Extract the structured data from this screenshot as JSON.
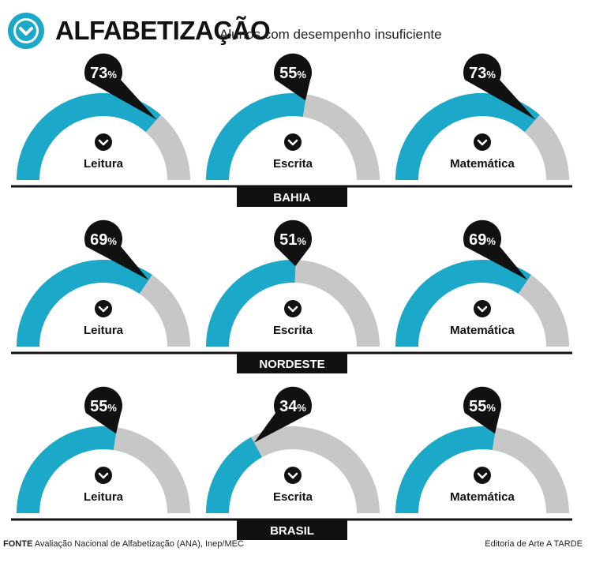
{
  "header": {
    "title": "ALFABETIZAÇÃO",
    "subtitle": "Alunos com desempenho insuficiente",
    "icon": "chevron-down-circle-icon"
  },
  "colors": {
    "fill": "#1ba8c9",
    "track": "#c7c7c7",
    "marker": "#111111",
    "bar": "#111111"
  },
  "chart_data": {
    "type": "gauge",
    "unit": "%",
    "categories": [
      "Leitura",
      "Escrita",
      "Matemática"
    ],
    "regions": [
      {
        "name": "BAHIA",
        "values": [
          73,
          55,
          73
        ]
      },
      {
        "name": "NORDESTE",
        "values": [
          69,
          51,
          69
        ]
      },
      {
        "name": "BRASIL",
        "values": [
          55,
          34,
          55
        ]
      }
    ],
    "range": [
      0,
      100
    ]
  },
  "footer": {
    "source_label": "FONTE",
    "source_text": "Avaliação Nacional de Alfabetização (ANA), Inep/MEC",
    "credit": "Editoria de Arte A TARDE"
  }
}
